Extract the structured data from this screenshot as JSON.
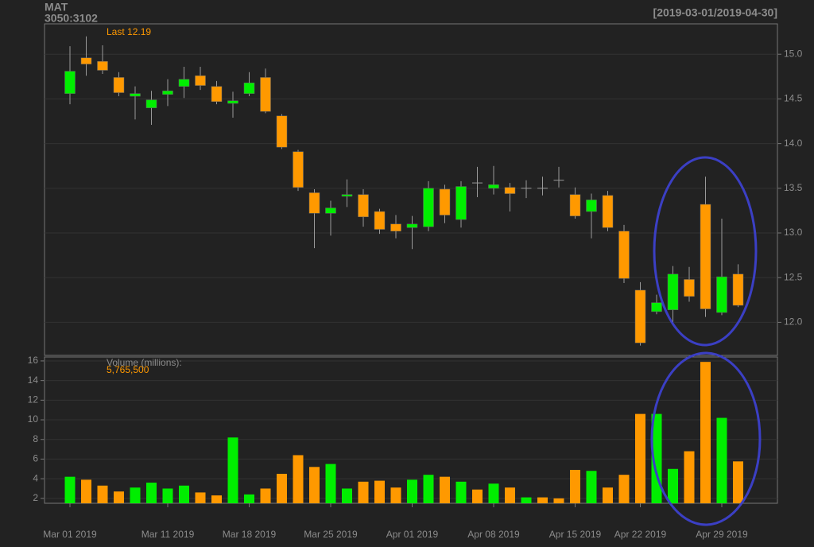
{
  "chart_data": [
    {
      "type": "candlestick",
      "title": "MAT",
      "subtitle": "3050:3102",
      "date_range": "[2019-03-01/2019-04-30]",
      "last_label": "Last 12.19",
      "categories": [
        "Mar 01 2019",
        null,
        null,
        null,
        null,
        null,
        "Mar 11 2019",
        null,
        null,
        null,
        null,
        "Mar 18 2019",
        null,
        null,
        null,
        null,
        "Mar 25 2019",
        null,
        null,
        null,
        null,
        "Apr 01 2019",
        null,
        null,
        null,
        null,
        "Apr 08 2019",
        null,
        null,
        null,
        null,
        "Apr 15 2019",
        null,
        null,
        null,
        "Apr 22 2019",
        null,
        null,
        null,
        null,
        "Apr 29 2019",
        null
      ],
      "open": [
        14.56,
        14.96,
        14.92,
        14.74,
        14.53,
        14.4,
        14.55,
        14.64,
        14.76,
        14.64,
        14.45,
        14.56,
        14.74,
        14.31,
        13.91,
        13.45,
        13.22,
        13.41,
        13.43,
        13.24,
        13.1,
        13.06,
        13.07,
        13.49,
        13.15,
        13.56,
        13.5,
        13.51,
        13.5,
        13.5,
        13.59,
        13.43,
        13.24,
        13.42,
        13.02,
        12.36,
        12.12,
        12.14,
        12.48,
        13.32,
        12.11,
        12.54
      ],
      "high": [
        15.09,
        15.2,
        15.1,
        14.8,
        14.64,
        14.59,
        14.72,
        14.86,
        14.86,
        14.7,
        14.58,
        14.8,
        14.84,
        14.33,
        13.93,
        13.49,
        13.36,
        13.6,
        13.49,
        13.27,
        13.2,
        13.19,
        13.58,
        13.54,
        13.58,
        13.74,
        13.75,
        13.56,
        13.59,
        13.63,
        13.74,
        13.51,
        13.44,
        13.47,
        13.09,
        12.45,
        12.31,
        12.63,
        12.62,
        13.63,
        13.16,
        12.65
      ],
      "low": [
        14.44,
        14.76,
        14.78,
        14.53,
        14.27,
        14.21,
        14.42,
        14.51,
        14.6,
        14.44,
        14.29,
        14.53,
        14.34,
        13.94,
        13.47,
        12.83,
        12.97,
        13.29,
        13.07,
        12.99,
        12.94,
        12.82,
        13.02,
        13.11,
        13.06,
        13.4,
        13.43,
        13.24,
        13.39,
        13.42,
        13.51,
        13.16,
        12.94,
        13.02,
        12.44,
        11.74,
        12.09,
        12.0,
        12.23,
        12.06,
        12.08,
        12.17
      ],
      "close": [
        14.81,
        14.89,
        14.82,
        14.57,
        14.56,
        14.49,
        14.59,
        14.72,
        14.65,
        14.47,
        14.48,
        14.68,
        14.36,
        13.96,
        13.51,
        13.22,
        13.28,
        13.43,
        13.18,
        13.04,
        13.02,
        13.1,
        13.5,
        13.2,
        13.52,
        13.56,
        13.54,
        13.44,
        13.5,
        13.5,
        13.59,
        13.19,
        13.37,
        13.06,
        12.49,
        11.77,
        12.22,
        12.54,
        12.29,
        12.15,
        12.51,
        12.19
      ],
      "up_color": "#00ee00",
      "down_color": "#ff9900",
      "flat_color": "#999999",
      "ylim": [
        11.63,
        15.34
      ],
      "yticks": [
        {
          "value": 12,
          "label": "12.0"
        },
        {
          "value": 12.5,
          "label": "12.5"
        },
        {
          "value": 13,
          "label": "13.0"
        },
        {
          "value": 13.5,
          "label": "13.5"
        },
        {
          "value": 14,
          "label": "14.0"
        },
        {
          "value": 14.5,
          "label": "14.5"
        },
        {
          "value": 15,
          "label": "15.0"
        }
      ],
      "grid": true
    },
    {
      "type": "bar",
      "title": "Volume (millions):",
      "last_label": "5,765,500",
      "values": [
        4.2,
        3.9,
        3.3,
        2.7,
        3.1,
        3.6,
        3.0,
        3.3,
        2.6,
        2.3,
        8.2,
        2.4,
        3.0,
        4.5,
        6.4,
        5.2,
        5.5,
        3.0,
        3.7,
        3.8,
        3.1,
        3.9,
        4.4,
        4.2,
        3.7,
        2.9,
        3.5,
        3.1,
        2.1,
        2.1,
        2.0,
        4.9,
        4.8,
        3.1,
        4.4,
        10.6,
        10.6,
        5.0,
        6.8,
        15.9,
        10.2,
        5.7655
      ],
      "colors": [
        "#00ee00",
        "#ff9900",
        "#ff9900",
        "#ff9900",
        "#00ee00",
        "#00ee00",
        "#00ee00",
        "#00ee00",
        "#ff9900",
        "#ff9900",
        "#00ee00",
        "#00ee00",
        "#ff9900",
        "#ff9900",
        "#ff9900",
        "#ff9900",
        "#00ee00",
        "#00ee00",
        "#ff9900",
        "#ff9900",
        "#ff9900",
        "#00ee00",
        "#00ee00",
        "#ff9900",
        "#00ee00",
        "#ff9900",
        "#00ee00",
        "#ff9900",
        "#00ee00",
        "#ff9900",
        "#ff9900",
        "#ff9900",
        "#00ee00",
        "#ff9900",
        "#ff9900",
        "#ff9900",
        "#00ee00",
        "#00ee00",
        "#ff9900",
        "#ff9900",
        "#00ee00",
        "#ff9900"
      ],
      "ylim": [
        1.5,
        16.4
      ],
      "yticks": [
        2,
        4,
        6,
        8,
        10,
        12,
        14,
        16
      ],
      "grid": true
    }
  ]
}
